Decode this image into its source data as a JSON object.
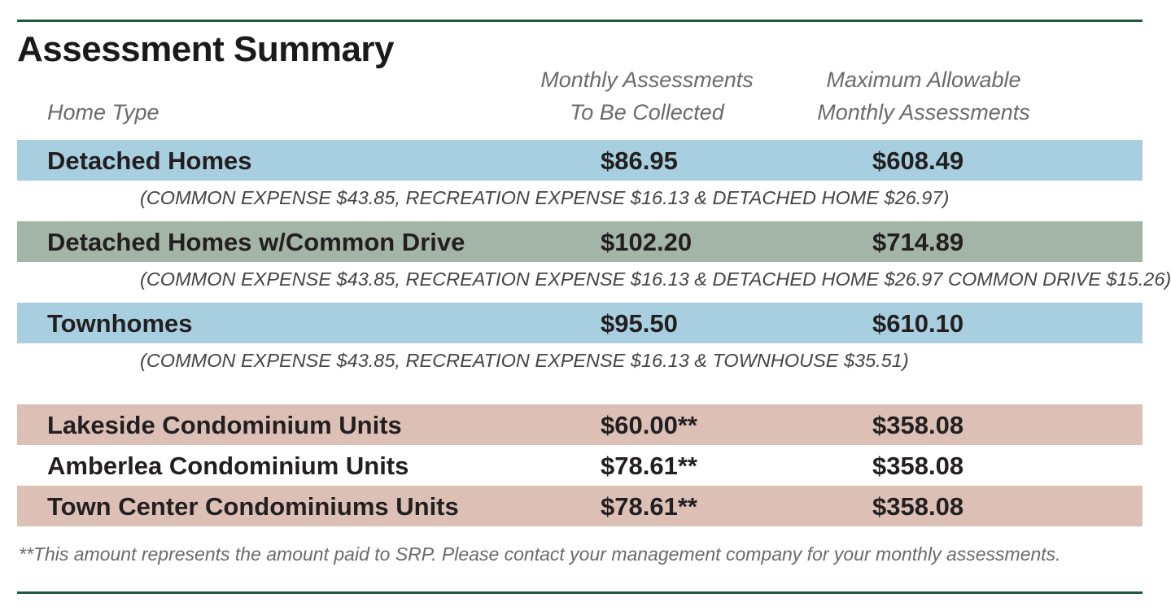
{
  "title": "Assessment Summary",
  "headers": {
    "home_type": "Home Type",
    "monthly_line1": "Monthly Assessments",
    "monthly_line2": "To Be Collected",
    "max_line1": "Maximum Allowable",
    "max_line2": "Monthly Assessments"
  },
  "rows": [
    {
      "name": "Detached Homes",
      "monthly": "$86.95",
      "max": "$608.49",
      "note": "(COMMON EXPENSE $43.85, RECREATION EXPENSE $16.13 & DETACHED HOME $26.97)",
      "color": "#a8cfe0"
    },
    {
      "name": "Detached Homes w/Common Drive",
      "monthly": "$102.20",
      "max": "$714.89",
      "note": "(COMMON EXPENSE $43.85, RECREATION EXPENSE $16.13 & DETACHED HOME $26.97 COMMON DRIVE $15.26)",
      "color": "#a3b5a6"
    },
    {
      "name": "Townhomes",
      "monthly": "$95.50",
      "max": "$610.10",
      "note": "(COMMON EXPENSE $43.85, RECREATION EXPENSE $16.13 & TOWNHOUSE $35.51)",
      "color": "#a8cfe0"
    },
    {
      "name": "Lakeside Condominium Units",
      "monthly": "$60.00**",
      "max": "$358.08",
      "color": "#dcc0b6"
    },
    {
      "name": "Amberlea Condominium Units",
      "monthly": "$78.61**",
      "max": "$358.08",
      "color": "#ffffff"
    },
    {
      "name": "Town Center Condominiums Units",
      "monthly": "$78.61**",
      "max": "$358.08",
      "color": "#dcc0b6"
    }
  ],
  "footnote": "**This amount represents the amount paid to SRP. Please contact your management company for your monthly assessments.",
  "colors": {
    "rule": "#1f5a3c",
    "blue_band": "#a8cfe0",
    "green_band": "#a3b5a6",
    "rose_band": "#dcc0b6"
  }
}
